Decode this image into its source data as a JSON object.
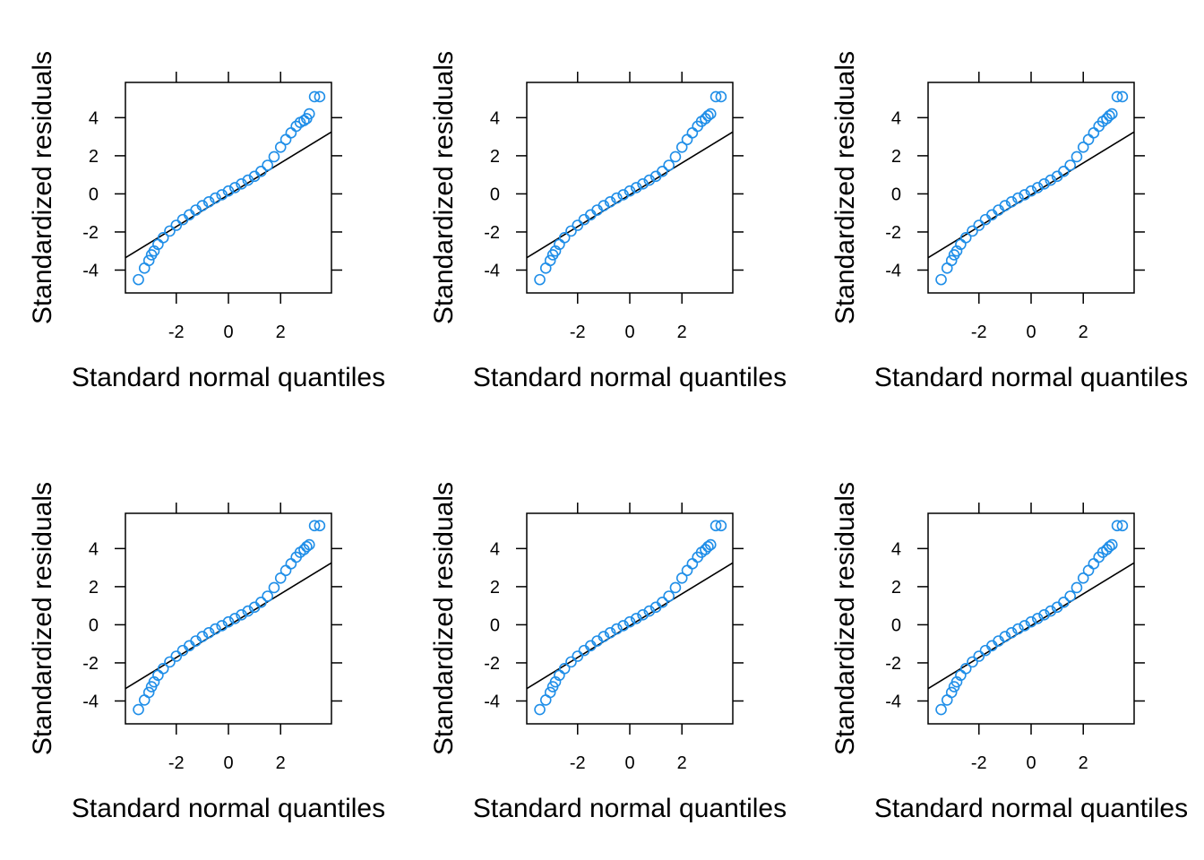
{
  "chart_data": [
    {
      "type": "scatter",
      "kind": "normal-qq",
      "xlabel": "Standard normal quantiles",
      "ylabel": "Standardized residuals",
      "xlim": [
        -3.95,
        3.95
      ],
      "ylim": [
        -5.2,
        5.85
      ],
      "xticks": [
        -2,
        0,
        2
      ],
      "xtick_labels": [
        "-2",
        "0",
        "2"
      ],
      "yticks": [
        -4,
        -2,
        0,
        2,
        4
      ],
      "ytick_labels": [
        "-4",
        "-2",
        "0",
        "2",
        "4"
      ],
      "reference_line": {
        "x": [
          -3.95,
          3.95
        ],
        "y": [
          -3.35,
          3.25
        ]
      },
      "point_color": "#1f8ee8",
      "line_color": "#000000",
      "series": [
        {
          "x": [
            -3.45,
            -3.22,
            -3.05,
            -2.95,
            -2.85,
            -2.7,
            -2.5,
            -2.25,
            -2.0,
            -1.75,
            -1.5,
            -1.25,
            -1.0,
            -0.75,
            -0.5,
            -0.25,
            0.0,
            0.25,
            0.5,
            0.75,
            1.0,
            1.25,
            1.5,
            1.75,
            2.0,
            2.2,
            2.4,
            2.6,
            2.75,
            2.9,
            3.0,
            3.1,
            3.3,
            3.5
          ],
          "y": [
            -4.5,
            -3.9,
            -3.5,
            -3.2,
            -3.0,
            -2.65,
            -2.3,
            -1.95,
            -1.65,
            -1.35,
            -1.1,
            -0.85,
            -0.62,
            -0.42,
            -0.22,
            -0.05,
            0.15,
            0.33,
            0.52,
            0.72,
            0.92,
            1.18,
            1.5,
            1.95,
            2.45,
            2.85,
            3.2,
            3.55,
            3.75,
            3.85,
            3.95,
            4.2,
            5.1,
            5.1
          ]
        }
      ]
    },
    {
      "type": "scatter",
      "kind": "normal-qq",
      "xlabel": "Standard normal quantiles",
      "ylabel": "Standardized residuals",
      "xlim": [
        -3.95,
        3.95
      ],
      "ylim": [
        -5.2,
        5.85
      ],
      "xticks": [
        -2,
        0,
        2
      ],
      "xtick_labels": [
        "-2",
        "0",
        "2"
      ],
      "yticks": [
        -4,
        -2,
        0,
        2,
        4
      ],
      "ytick_labels": [
        "-4",
        "-2",
        "0",
        "2",
        "4"
      ],
      "reference_line": {
        "x": [
          -3.95,
          3.95
        ],
        "y": [
          -3.35,
          3.25
        ]
      },
      "point_color": "#1f8ee8",
      "line_color": "#000000",
      "series": [
        {
          "x": [
            -3.45,
            -3.22,
            -3.05,
            -2.95,
            -2.85,
            -2.7,
            -2.5,
            -2.25,
            -2.0,
            -1.75,
            -1.5,
            -1.25,
            -1.0,
            -0.75,
            -0.5,
            -0.25,
            0.0,
            0.25,
            0.5,
            0.75,
            1.0,
            1.25,
            1.5,
            1.75,
            2.0,
            2.2,
            2.4,
            2.6,
            2.75,
            2.9,
            3.0,
            3.1,
            3.3,
            3.5
          ],
          "y": [
            -4.5,
            -3.9,
            -3.5,
            -3.2,
            -3.0,
            -2.65,
            -2.3,
            -1.95,
            -1.65,
            -1.35,
            -1.1,
            -0.85,
            -0.62,
            -0.42,
            -0.22,
            -0.05,
            0.15,
            0.33,
            0.52,
            0.72,
            0.92,
            1.18,
            1.5,
            1.95,
            2.45,
            2.85,
            3.2,
            3.55,
            3.8,
            3.95,
            4.1,
            4.2,
            5.1,
            5.1
          ]
        }
      ]
    },
    {
      "type": "scatter",
      "kind": "normal-qq",
      "xlabel": "Standard normal quantiles",
      "ylabel": "Standardized residuals",
      "xlim": [
        -3.95,
        3.95
      ],
      "ylim": [
        -5.2,
        5.85
      ],
      "xticks": [
        -2,
        0,
        2
      ],
      "xtick_labels": [
        "-2",
        "0",
        "2"
      ],
      "yticks": [
        -4,
        -2,
        0,
        2,
        4
      ],
      "ytick_labels": [
        "-4",
        "-2",
        "0",
        "2",
        "4"
      ],
      "reference_line": {
        "x": [
          -3.95,
          3.95
        ],
        "y": [
          -3.35,
          3.25
        ]
      },
      "point_color": "#1f8ee8",
      "line_color": "#000000",
      "series": [
        {
          "x": [
            -3.45,
            -3.22,
            -3.05,
            -2.95,
            -2.85,
            -2.7,
            -2.5,
            -2.25,
            -2.0,
            -1.75,
            -1.5,
            -1.25,
            -1.0,
            -0.75,
            -0.5,
            -0.25,
            0.0,
            0.25,
            0.5,
            0.75,
            1.0,
            1.25,
            1.5,
            1.75,
            2.0,
            2.2,
            2.4,
            2.6,
            2.75,
            2.9,
            3.0,
            3.1,
            3.3,
            3.5
          ],
          "y": [
            -4.5,
            -3.9,
            -3.5,
            -3.2,
            -3.0,
            -2.65,
            -2.3,
            -1.95,
            -1.65,
            -1.35,
            -1.1,
            -0.85,
            -0.62,
            -0.42,
            -0.22,
            -0.05,
            0.15,
            0.33,
            0.52,
            0.72,
            0.92,
            1.18,
            1.5,
            1.95,
            2.45,
            2.85,
            3.2,
            3.55,
            3.8,
            3.95,
            4.1,
            4.2,
            5.1,
            5.1
          ]
        }
      ]
    },
    {
      "type": "scatter",
      "kind": "normal-qq",
      "xlabel": "Standard normal quantiles",
      "ylabel": "Standardized residuals",
      "xlim": [
        -3.95,
        3.95
      ],
      "ylim": [
        -5.2,
        5.85
      ],
      "xticks": [
        -2,
        0,
        2
      ],
      "xtick_labels": [
        "-2",
        "0",
        "2"
      ],
      "yticks": [
        -4,
        -2,
        0,
        2,
        4
      ],
      "ytick_labels": [
        "-4",
        "-2",
        "0",
        "2",
        "4"
      ],
      "reference_line": {
        "x": [
          -3.95,
          3.95
        ],
        "y": [
          -3.35,
          3.25
        ]
      },
      "point_color": "#1f8ee8",
      "line_color": "#000000",
      "series": [
        {
          "x": [
            -3.45,
            -3.22,
            -3.05,
            -2.95,
            -2.85,
            -2.7,
            -2.5,
            -2.25,
            -2.0,
            -1.75,
            -1.5,
            -1.25,
            -1.0,
            -0.75,
            -0.5,
            -0.25,
            0.0,
            0.25,
            0.5,
            0.75,
            1.0,
            1.25,
            1.5,
            1.75,
            2.0,
            2.2,
            2.4,
            2.6,
            2.75,
            2.9,
            3.0,
            3.1,
            3.3,
            3.5
          ],
          "y": [
            -4.45,
            -3.95,
            -3.55,
            -3.25,
            -3.0,
            -2.65,
            -2.3,
            -1.95,
            -1.65,
            -1.35,
            -1.1,
            -0.85,
            -0.62,
            -0.42,
            -0.22,
            -0.05,
            0.15,
            0.33,
            0.52,
            0.72,
            0.92,
            1.18,
            1.5,
            1.95,
            2.45,
            2.85,
            3.2,
            3.55,
            3.8,
            3.95,
            4.1,
            4.2,
            5.2,
            5.2
          ]
        }
      ]
    },
    {
      "type": "scatter",
      "kind": "normal-qq",
      "xlabel": "Standard normal quantiles",
      "ylabel": "Standardized residuals",
      "xlim": [
        -3.95,
        3.95
      ],
      "ylim": [
        -5.2,
        5.85
      ],
      "xticks": [
        -2,
        0,
        2
      ],
      "xtick_labels": [
        "-2",
        "0",
        "2"
      ],
      "yticks": [
        -4,
        -2,
        0,
        2,
        4
      ],
      "ytick_labels": [
        "-4",
        "-2",
        "0",
        "2",
        "4"
      ],
      "reference_line": {
        "x": [
          -3.95,
          3.95
        ],
        "y": [
          -3.35,
          3.25
        ]
      },
      "point_color": "#1f8ee8",
      "line_color": "#000000",
      "series": [
        {
          "x": [
            -3.45,
            -3.22,
            -3.05,
            -2.95,
            -2.85,
            -2.7,
            -2.5,
            -2.25,
            -2.0,
            -1.75,
            -1.5,
            -1.25,
            -1.0,
            -0.75,
            -0.5,
            -0.25,
            0.0,
            0.25,
            0.5,
            0.75,
            1.0,
            1.25,
            1.5,
            1.75,
            2.0,
            2.2,
            2.4,
            2.6,
            2.75,
            2.9,
            3.0,
            3.1,
            3.3,
            3.5
          ],
          "y": [
            -4.45,
            -3.95,
            -3.55,
            -3.25,
            -3.0,
            -2.65,
            -2.3,
            -1.95,
            -1.65,
            -1.35,
            -1.1,
            -0.85,
            -0.62,
            -0.42,
            -0.22,
            -0.05,
            0.15,
            0.33,
            0.52,
            0.72,
            0.92,
            1.18,
            1.5,
            1.95,
            2.45,
            2.85,
            3.2,
            3.55,
            3.8,
            3.95,
            4.1,
            4.2,
            5.2,
            5.2
          ]
        }
      ]
    },
    {
      "type": "scatter",
      "kind": "normal-qq",
      "xlabel": "Standard normal quantiles",
      "ylabel": "Standardized residuals",
      "xlim": [
        -3.95,
        3.95
      ],
      "ylim": [
        -5.2,
        5.85
      ],
      "xticks": [
        -2,
        0,
        2
      ],
      "xtick_labels": [
        "-2",
        "0",
        "2"
      ],
      "yticks": [
        -4,
        -2,
        0,
        2,
        4
      ],
      "ytick_labels": [
        "-4",
        "-2",
        "0",
        "2",
        "4"
      ],
      "reference_line": {
        "x": [
          -3.95,
          3.95
        ],
        "y": [
          -3.35,
          3.25
        ]
      },
      "point_color": "#1f8ee8",
      "line_color": "#000000",
      "series": [
        {
          "x": [
            -3.45,
            -3.22,
            -3.05,
            -2.95,
            -2.85,
            -2.7,
            -2.5,
            -2.25,
            -2.0,
            -1.75,
            -1.5,
            -1.25,
            -1.0,
            -0.75,
            -0.5,
            -0.25,
            0.0,
            0.25,
            0.5,
            0.75,
            1.0,
            1.25,
            1.5,
            1.75,
            2.0,
            2.2,
            2.4,
            2.6,
            2.75,
            2.9,
            3.0,
            3.1,
            3.3,
            3.5
          ],
          "y": [
            -4.45,
            -3.95,
            -3.55,
            -3.25,
            -3.0,
            -2.65,
            -2.3,
            -1.95,
            -1.65,
            -1.35,
            -1.1,
            -0.85,
            -0.62,
            -0.42,
            -0.22,
            -0.05,
            0.15,
            0.33,
            0.52,
            0.72,
            0.92,
            1.18,
            1.5,
            1.95,
            2.45,
            2.85,
            3.2,
            3.55,
            3.8,
            3.95,
            4.1,
            4.2,
            5.2,
            5.2
          ]
        }
      ]
    }
  ]
}
